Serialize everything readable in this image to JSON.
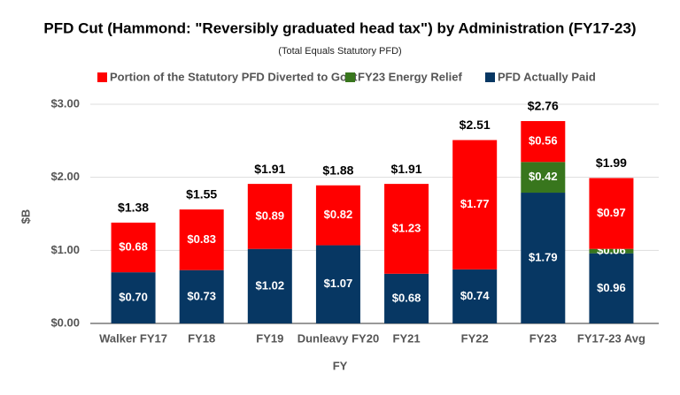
{
  "chart_data": {
    "type": "stacked_bar",
    "title": "PFD Cut (Hammond: \"Reversibly graduated head tax\") by Administration (FY17-23)",
    "subtitle": "(Total Equals Statutory PFD)",
    "x_label": "FY",
    "y_label": "$B",
    "categories": [
      "Walker FY17",
      "FY18",
      "FY19",
      "Dunleavy FY20",
      "FY21",
      "FY22",
      "FY23",
      "FY17-23 Avg"
    ],
    "series": [
      {
        "name": "Portion of the Statutory PFD Diverted to Govt",
        "color": "#ff0000",
        "values": [
          0.68,
          0.83,
          0.89,
          0.82,
          1.23,
          1.77,
          0.56,
          0.97
        ],
        "value_labels": [
          "$0.68",
          "$0.83",
          "$0.89",
          "$0.82",
          "$1.23",
          "$1.77",
          "$0.56",
          "$0.97"
        ]
      },
      {
        "name": "FY23 Energy Relief",
        "color": "#38761d",
        "values": [
          null,
          null,
          null,
          null,
          null,
          null,
          0.42,
          0.06
        ],
        "value_labels": [
          null,
          null,
          null,
          null,
          null,
          null,
          "$0.42",
          "$0.06"
        ]
      },
      {
        "name": "PFD Actually Paid",
        "color": "#073763",
        "values": [
          0.7,
          0.73,
          1.02,
          1.07,
          0.68,
          0.74,
          1.79,
          0.96
        ],
        "value_labels": [
          "$0.70",
          "$0.73",
          "$1.02",
          "$1.07",
          "$0.68",
          "$0.74",
          "$1.79",
          "$0.96"
        ]
      }
    ],
    "totals": [
      1.38,
      1.55,
      1.91,
      1.88,
      1.91,
      2.51,
      2.76,
      1.99
    ],
    "total_labels": [
      "$1.38",
      "$1.55",
      "$1.91",
      "$1.88",
      "$1.91",
      "$2.51",
      "$2.76",
      "$1.99"
    ],
    "ylim": [
      0,
      3
    ],
    "yticks": [
      {
        "value": 0,
        "label": "$0.00"
      },
      {
        "value": 1,
        "label": "$1.00"
      },
      {
        "value": 2,
        "label": "$2.00"
      },
      {
        "value": 3,
        "label": "$3.00"
      }
    ],
    "grid": true,
    "legend": "top"
  }
}
